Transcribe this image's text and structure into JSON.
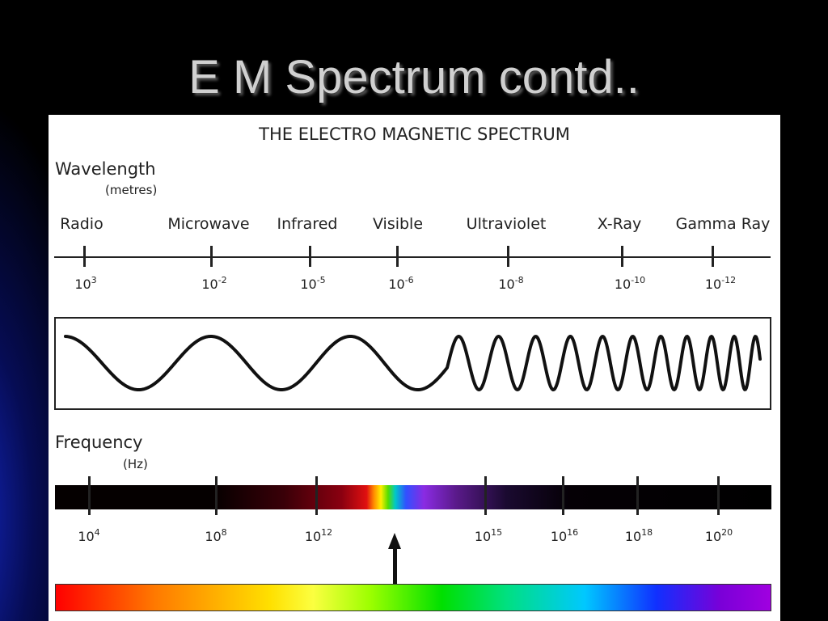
{
  "slide": {
    "title": "E M Spectrum contd.."
  },
  "diagram": {
    "title": "THE ELECTRO MAGNETIC SPECTRUM",
    "wavelength": {
      "label": "Wavelength",
      "unit": "(metres)",
      "bands": [
        {
          "name": "Radio",
          "base": "10",
          "exp": "3"
        },
        {
          "name": "Microwave",
          "base": "10",
          "exp": "-2"
        },
        {
          "name": "Infrared",
          "base": "10",
          "exp": "-5"
        },
        {
          "name": "Visible",
          "base": "10",
          "exp": "-6"
        },
        {
          "name": "Ultraviolet",
          "base": "10",
          "exp": "-8"
        },
        {
          "name": "X-Ray",
          "base": "10",
          "exp": "-10"
        },
        {
          "name": "Gamma Ray",
          "base": "10",
          "exp": "-12"
        }
      ]
    },
    "frequency": {
      "label": "Frequency",
      "unit": "(Hz)",
      "ticks": [
        {
          "base": "10",
          "exp": "4"
        },
        {
          "base": "10",
          "exp": "8"
        },
        {
          "base": "10",
          "exp": "12"
        },
        {
          "base": "10",
          "exp": "15"
        },
        {
          "base": "10",
          "exp": "16"
        },
        {
          "base": "10",
          "exp": "18"
        },
        {
          "base": "10",
          "exp": "20"
        }
      ]
    }
  }
}
